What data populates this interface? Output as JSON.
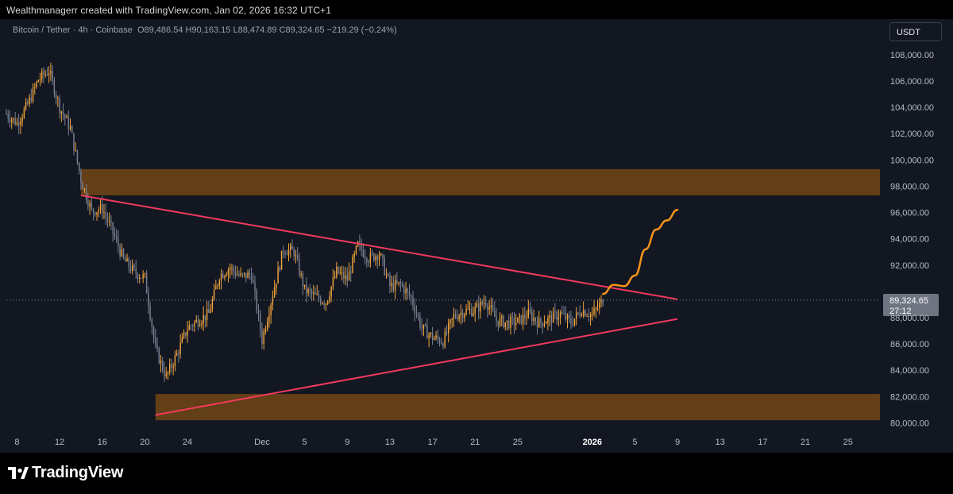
{
  "credit": "Wealthmanagerr created with TradingView.com, Jan 02, 2026 16:32 UTC+1",
  "header": {
    "symbol": "Bitcoin / Tether · 4h · Coinbase",
    "open_label": "O",
    "open": "89,486.54",
    "high_label": "H",
    "high": "90,163.15",
    "low_label": "L",
    "low": "88,474.89",
    "close_label": "C",
    "close": "89,324.65",
    "change": "−219.29 (−0.24%)",
    "currency": "USDT"
  },
  "price_label": {
    "price": "89,324.65",
    "countdown": "27:12"
  },
  "branding": {
    "logo_text": "TradingView"
  },
  "colors": {
    "background": "#121722",
    "candle_up": "#f0a33a",
    "candle_down": "#7a8091",
    "zone": "#6b4416",
    "trendline": "#f23a5c",
    "projection": "#f7931a"
  },
  "chart_data": {
    "type": "candlestick",
    "symbol": "Bitcoin / Tether",
    "interval": "4h",
    "exchange": "Coinbase",
    "ylim": [
      79000,
      109500
    ],
    "xlim": [
      "2025-11-07",
      "2026-01-28"
    ],
    "y_ticks": [
      "108,000.00",
      "106,000.00",
      "104,000.00",
      "102,000.00",
      "100,000.00",
      "98,000.00",
      "96,000.00",
      "94,000.00",
      "92,000.00",
      "90,000.00",
      "88,000.00",
      "86,000.00",
      "84,000.00",
      "82,000.00",
      "80,000.00"
    ],
    "y_tick_values": [
      108000,
      106000,
      104000,
      102000,
      100000,
      98000,
      96000,
      94000,
      92000,
      90000,
      88000,
      86000,
      84000,
      82000,
      80000
    ],
    "x_ticks": [
      {
        "label": "8",
        "date": "2025-11-08"
      },
      {
        "label": "12",
        "date": "2025-11-12"
      },
      {
        "label": "16",
        "date": "2025-11-16"
      },
      {
        "label": "20",
        "date": "2025-11-20"
      },
      {
        "label": "24",
        "date": "2025-11-24"
      },
      {
        "label": "Dec",
        "date": "2025-12-01"
      },
      {
        "label": "5",
        "date": "2025-12-05"
      },
      {
        "label": "9",
        "date": "2025-12-09"
      },
      {
        "label": "13",
        "date": "2025-12-13"
      },
      {
        "label": "17",
        "date": "2025-12-17"
      },
      {
        "label": "21",
        "date": "2025-12-21"
      },
      {
        "label": "25",
        "date": "2025-12-25"
      },
      {
        "label": "2026",
        "date": "2026-01-01",
        "bold": true
      },
      {
        "label": "5",
        "date": "2026-01-05"
      },
      {
        "label": "9",
        "date": "2026-01-09"
      },
      {
        "label": "13",
        "date": "2026-01-13"
      },
      {
        "label": "17",
        "date": "2026-01-17"
      },
      {
        "label": "21",
        "date": "2026-01-21"
      },
      {
        "label": "25",
        "date": "2026-01-25"
      }
    ],
    "close_path": [
      [
        "2025-11-07",
        103500
      ],
      [
        "2025-11-08",
        102800
      ],
      [
        "2025-11-09",
        104200
      ],
      [
        "2025-11-10",
        106100
      ],
      [
        "2025-11-11",
        106800
      ],
      [
        "2025-11-12",
        104000
      ],
      [
        "2025-11-13",
        102400
      ],
      [
        "2025-11-14",
        98500
      ],
      [
        "2025-11-15",
        96100
      ],
      [
        "2025-11-16",
        96300
      ],
      [
        "2025-11-17",
        94500
      ],
      [
        "2025-11-18",
        92400
      ],
      [
        "2025-11-19",
        91500
      ],
      [
        "2025-11-20",
        91000
      ],
      [
        "2025-11-21",
        85600
      ],
      [
        "2025-11-22",
        83500
      ],
      [
        "2025-11-23",
        85200
      ],
      [
        "2025-11-24",
        87200
      ],
      [
        "2025-11-25",
        87800
      ],
      [
        "2025-11-26",
        88300
      ],
      [
        "2025-11-27",
        91200
      ],
      [
        "2025-11-28",
        91800
      ],
      [
        "2025-11-29",
        91100
      ],
      [
        "2025-11-30",
        91300
      ],
      [
        "2025-12-01",
        86300
      ],
      [
        "2025-12-02",
        89800
      ],
      [
        "2025-12-03",
        93200
      ],
      [
        "2025-12-04",
        93000
      ],
      [
        "2025-12-05",
        90100
      ],
      [
        "2025-12-06",
        89600
      ],
      [
        "2025-12-07",
        89200
      ],
      [
        "2025-12-08",
        91500
      ],
      [
        "2025-12-09",
        90900
      ],
      [
        "2025-12-10",
        93500
      ],
      [
        "2025-12-11",
        92500
      ],
      [
        "2025-12-12",
        92900
      ],
      [
        "2025-12-13",
        90400
      ],
      [
        "2025-12-14",
        90500
      ],
      [
        "2025-12-15",
        89500
      ],
      [
        "2025-12-16",
        87200
      ],
      [
        "2025-12-17",
        86500
      ],
      [
        "2025-12-18",
        86200
      ],
      [
        "2025-12-19",
        88100
      ],
      [
        "2025-12-20",
        88500
      ],
      [
        "2025-12-21",
        88600
      ],
      [
        "2025-12-22",
        89300
      ],
      [
        "2025-12-23",
        87800
      ],
      [
        "2025-12-24",
        87600
      ],
      [
        "2025-12-25",
        87700
      ],
      [
        "2025-12-26",
        88300
      ],
      [
        "2025-12-27",
        87600
      ],
      [
        "2025-12-28",
        87900
      ],
      [
        "2025-12-29",
        88300
      ],
      [
        "2025-12-30",
        87600
      ],
      [
        "2025-12-31",
        88600
      ],
      [
        "2026-01-01",
        88200
      ],
      [
        "2026-01-02",
        89324.65
      ]
    ],
    "zones": [
      {
        "from": "2025-11-14",
        "to": "2026-01-28",
        "low": 97300,
        "high": 99300
      },
      {
        "from": "2025-11-21",
        "to": "2026-01-28",
        "low": 80200,
        "high": 82200
      }
    ],
    "trendlines": [
      {
        "name": "upper",
        "start": [
          "2025-11-14",
          97300
        ],
        "end": [
          "2026-01-09",
          89400
        ]
      },
      {
        "name": "lower",
        "start": [
          "2025-11-21",
          80600
        ],
        "end": [
          "2026-01-09",
          87900
        ]
      }
    ],
    "projection": [
      [
        "2026-01-02",
        89800
      ],
      [
        "2026-01-03",
        90500
      ],
      [
        "2026-01-04",
        90400
      ],
      [
        "2026-01-05",
        91200
      ],
      [
        "2026-01-06",
        93200
      ],
      [
        "2026-01-07",
        94700
      ],
      [
        "2026-01-08",
        95400
      ],
      [
        "2026-01-09",
        96200
      ]
    ],
    "last_price": 89324.65
  }
}
